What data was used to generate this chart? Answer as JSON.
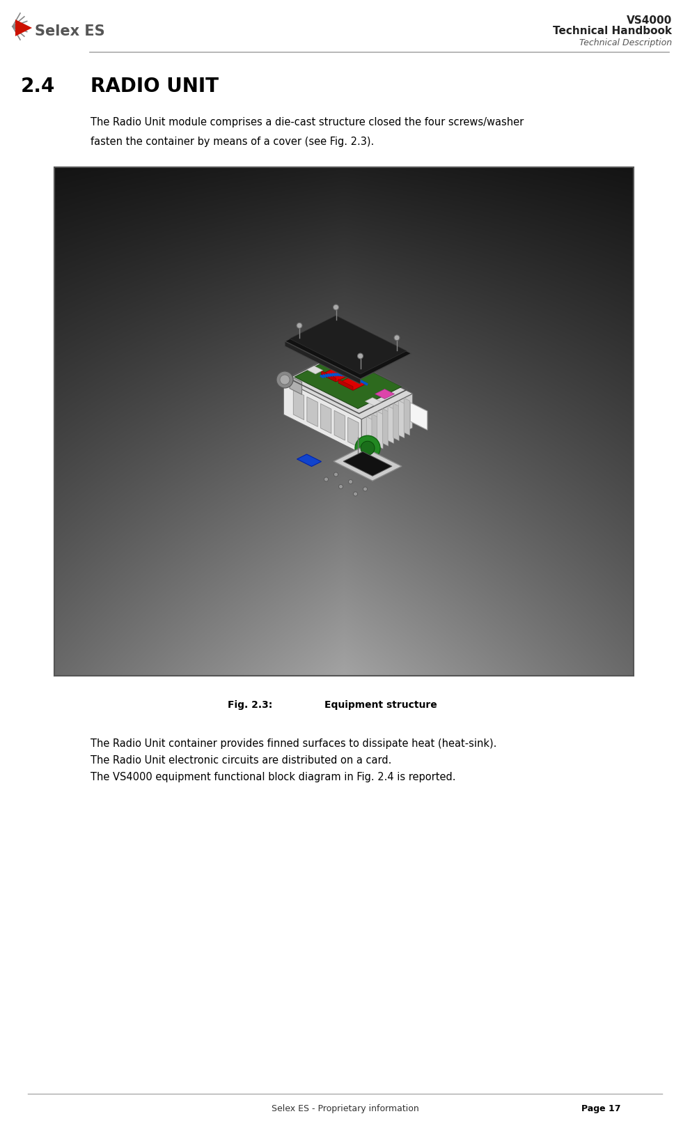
{
  "page_width": 9.91,
  "page_height": 16.22,
  "bg_color": "#ffffff",
  "header_line_color": "#aaaaaa",
  "footer_line_color": "#aaaaaa",
  "header_vs4000": "VS4000",
  "header_handbook": "Technical Handbook",
  "header_desc": "Technical Description",
  "header_text_color": "#555555",
  "logo_text": "Selex ES",
  "logo_color": "#555555",
  "section_number": "2.4",
  "section_title": "RADIO UNIT",
  "section_title_color": "#000000",
  "section_title_fontsize": 20,
  "body_text_color": "#000000",
  "body_fontsize": 11,
  "para1_line1": "The Radio Unit module comprises a die-cast structure closed the four screws/washer",
  "para1_line2": "fasten the container by means of a cover (see Fig. 2.3).",
  "fig_caption_label": "Fig. 2.3:",
  "fig_caption_text": "     Equipment structure",
  "fig_caption_fontsize": 10,
  "para2_line1": "The Radio Unit container provides finned surfaces to dissipate heat (heat-sink).",
  "para2_line2": "The Radio Unit electronic circuits are distributed on a card.",
  "para2_line3": "The VS4000 equipment functional block diagram in Fig. 2.4 is reported.",
  "footer_left": "Selex ES - Proprietary information",
  "footer_right": "Page 17",
  "footer_fontsize": 9
}
